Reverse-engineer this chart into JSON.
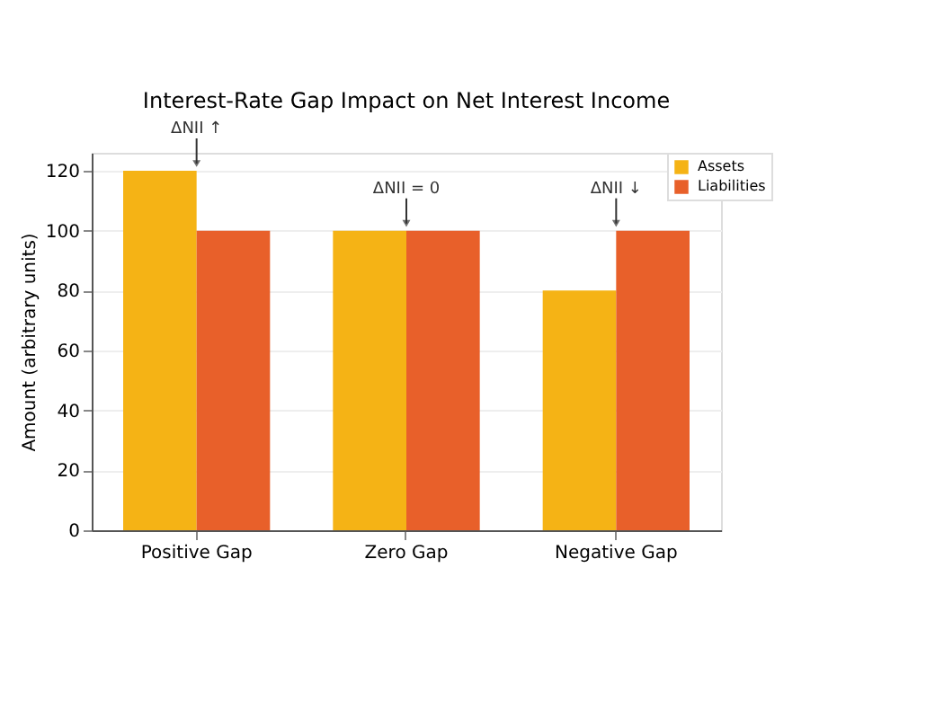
{
  "chart_data": {
    "type": "bar",
    "title": "Interest-Rate Gap Impact on Net Interest Income",
    "categories": [
      "Positive Gap",
      "Zero Gap",
      "Negative Gap"
    ],
    "series": [
      {
        "name": "Assets",
        "color": "#f5b315",
        "values": [
          120,
          100,
          80
        ]
      },
      {
        "name": "Liabilities",
        "color": "#e8602a",
        "values": [
          100,
          100,
          100
        ]
      }
    ],
    "ylabel": "Amount (arbitrary units)",
    "ylim": [
      0,
      126
    ],
    "yticks": [
      0,
      20,
      40,
      60,
      80,
      100,
      120
    ],
    "grid": "y",
    "legend": "top right",
    "annotations": [
      {
        "text": "ΔNII ↑",
        "x": "Positive Gap",
        "y": 120
      },
      {
        "text": "ΔNII = 0",
        "x": "Zero Gap",
        "y": 100
      },
      {
        "text": "ΔNII ↓",
        "x": "Negative Gap",
        "y": 100
      }
    ]
  }
}
